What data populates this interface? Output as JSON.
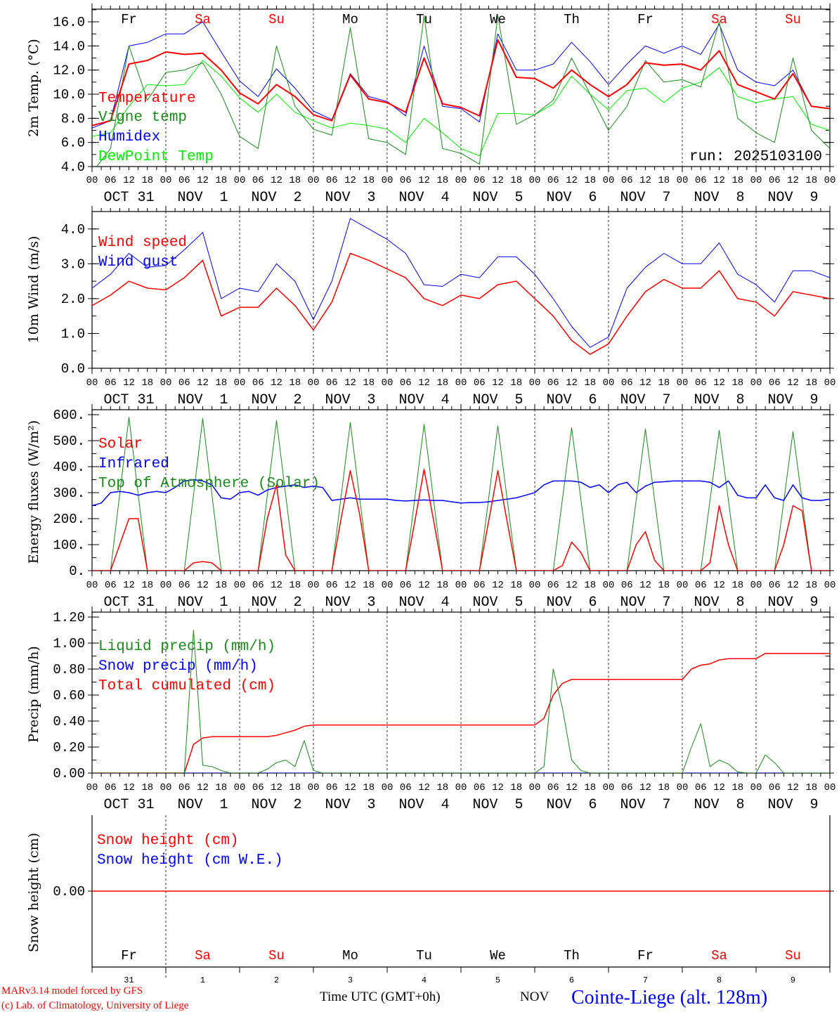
{
  "chart_data": [
    {
      "type": "line",
      "id": "temperature",
      "ylabel": "2m Temp. (°C)",
      "ylim": [
        4,
        17.05
      ],
      "yticks": [
        4,
        6,
        8,
        10,
        12,
        14,
        16
      ],
      "ytick_labels": [
        "4.0",
        "6.0",
        "8.0",
        "10.0",
        "12.0",
        "14.0",
        "16.0"
      ],
      "minor_step": 1,
      "weekday_labels": [
        "Fr",
        "Sa",
        "Su",
        "Mo",
        "Tu",
        "We",
        "Th",
        "Fr",
        "Sa",
        "Su"
      ],
      "annotation": "run: 2025103100",
      "series": [
        {
          "name": "Temperature",
          "color": "#ff0000",
          "width": 2,
          "step_hours": 6,
          "values": [
            7.4,
            7.8,
            12.5,
            12.8,
            13.5,
            13.3,
            13.4,
            12.0,
            10.1,
            9.2,
            10.8,
            9.8,
            8.3,
            7.8,
            11.6,
            9.6,
            9.3,
            8.5,
            13.0,
            9.2,
            8.9,
            8.2,
            14.5,
            11.4,
            11.3,
            10.5,
            12.0,
            10.8,
            9.8,
            10.8,
            12.6,
            12.4,
            12.5,
            12.0,
            13.6,
            10.8,
            10.2,
            9.6,
            11.7,
            9.0,
            8.8
          ]
        },
        {
          "name": "Vigne temp",
          "color": "#1a8a1a",
          "width": 1,
          "step_hours": 6,
          "values": [
            3.5,
            5.5,
            14.0,
            9.5,
            11.8,
            12.0,
            12.6,
            10.0,
            6.5,
            5.5,
            14.0,
            9.0,
            7.1,
            6.6,
            15.5,
            6.3,
            6.0,
            5.0,
            16.5,
            5.5,
            5.1,
            4.2,
            16.5,
            7.5,
            8.3,
            9.5,
            13.0,
            10.0,
            7.0,
            9.0,
            12.8,
            11.0,
            11.2,
            10.6,
            16.0,
            8.0,
            6.8,
            6.0,
            13.0,
            7.0,
            5.5
          ]
        },
        {
          "name": "Humidex",
          "color": "#0000ff",
          "width": 1,
          "step_hours": 6,
          "values": [
            7.2,
            7.8,
            14.0,
            14.3,
            15.0,
            15.0,
            16.0,
            13.5,
            11.1,
            9.8,
            12.1,
            10.5,
            8.6,
            7.9,
            11.7,
            9.8,
            9.4,
            8.2,
            14.0,
            9.0,
            8.8,
            7.7,
            15.0,
            12.0,
            12.0,
            12.5,
            14.3,
            12.7,
            10.8,
            12.5,
            14.0,
            13.4,
            14.0,
            13.3,
            15.8,
            12.0,
            11.0,
            10.7,
            12.0,
            9.0,
            8.8
          ]
        },
        {
          "name": "DewPoint Temp",
          "color": "#00ee00",
          "width": 1,
          "step_hours": 6,
          "values": [
            6.5,
            6.8,
            9.0,
            10.8,
            10.7,
            10.8,
            12.8,
            11.5,
            9.7,
            8.5,
            10.0,
            8.5,
            7.8,
            7.2,
            7.6,
            7.4,
            7.1,
            6.0,
            8.0,
            6.8,
            5.5,
            4.9,
            8.4,
            8.4,
            8.3,
            9.2,
            11.5,
            10.0,
            8.7,
            10.3,
            10.5,
            9.3,
            10.5,
            11.0,
            12.2,
            9.8,
            9.3,
            9.6,
            9.8,
            7.5,
            7.0
          ]
        }
      ]
    },
    {
      "type": "line",
      "id": "wind",
      "ylabel": "10m Wind (m/s)",
      "ylim": [
        0,
        4.5
      ],
      "yticks": [
        0,
        1,
        2,
        3,
        4
      ],
      "ytick_labels": [
        "0.0",
        "1.0",
        "2.0",
        "3.0",
        "4.0"
      ],
      "minor_step": 0.5,
      "series": [
        {
          "name": "Wind speed",
          "color": "#ff0000",
          "width": 1.5,
          "step_hours": 6,
          "values": [
            1.8,
            2.1,
            2.5,
            2.3,
            2.25,
            2.6,
            3.1,
            1.5,
            1.75,
            1.75,
            2.3,
            1.8,
            1.1,
            1.9,
            3.3,
            3.1,
            2.85,
            2.6,
            2.0,
            1.8,
            2.1,
            2.0,
            2.4,
            2.5,
            2.0,
            1.5,
            0.8,
            0.4,
            0.7,
            1.5,
            2.2,
            2.55,
            2.3,
            2.3,
            2.8,
            2.0,
            1.9,
            1.5,
            2.2,
            2.1,
            2.0
          ]
        },
        {
          "name": "Wind gust",
          "color": "#0000ff",
          "width": 1,
          "step_hours": 6,
          "values": [
            2.3,
            2.7,
            3.3,
            2.9,
            2.95,
            3.4,
            3.9,
            2.0,
            2.3,
            2.2,
            3.0,
            2.5,
            1.4,
            2.5,
            4.3,
            4.0,
            3.7,
            3.3,
            2.4,
            2.35,
            2.7,
            2.6,
            3.2,
            3.2,
            2.7,
            2.0,
            1.2,
            0.6,
            0.9,
            2.3,
            2.9,
            3.3,
            3.0,
            3.0,
            3.6,
            2.7,
            2.4,
            1.9,
            2.8,
            2.8,
            2.6
          ]
        }
      ]
    },
    {
      "type": "line",
      "id": "energy",
      "ylabel": "Energy fluxes (W/m²)",
      "ylim": [
        0,
        619
      ],
      "yticks": [
        0,
        100,
        200,
        300,
        400,
        500,
        600
      ],
      "ytick_labels": [
        "0.",
        "100.",
        "200.",
        "300.",
        "400.",
        "500.",
        "600."
      ],
      "minor_step": 50,
      "series": [
        {
          "name": "Solar",
          "color": "#ff0000",
          "width": 1.5,
          "step_hours": 3,
          "values": [
            0,
            0,
            0,
            100,
            200,
            200,
            0,
            0,
            0,
            0,
            0,
            30,
            35,
            30,
            0,
            0,
            0,
            0,
            0,
            200,
            330,
            60,
            0,
            0,
            0,
            0,
            0,
            200,
            385,
            220,
            0,
            0,
            0,
            0,
            0,
            190,
            390,
            200,
            0,
            0,
            0,
            0,
            0,
            190,
            385,
            190,
            0,
            0,
            0,
            0,
            0,
            20,
            110,
            70,
            0,
            0,
            0,
            0,
            0,
            100,
            150,
            40,
            0,
            0,
            0,
            0,
            0,
            30,
            250,
            100,
            0,
            0,
            0,
            0,
            0,
            100,
            250,
            230,
            0,
            0,
            0
          ]
        },
        {
          "name": "Infrared",
          "color": "#0000ff",
          "width": 1.5,
          "step_hours": 3,
          "values": [
            250,
            260,
            300,
            305,
            300,
            290,
            300,
            305,
            300,
            320,
            345,
            350,
            345,
            330,
            280,
            275,
            300,
            305,
            290,
            310,
            320,
            325,
            330,
            320,
            325,
            320,
            270,
            275,
            280,
            275,
            275,
            275,
            275,
            270,
            268,
            270,
            272,
            270,
            270,
            265,
            260,
            262,
            262,
            265,
            270,
            275,
            280,
            290,
            300,
            330,
            345,
            345,
            345,
            340,
            320,
            330,
            300,
            330,
            340,
            300,
            325,
            340,
            342,
            345,
            345,
            345,
            345,
            340,
            320,
            345,
            290,
            280,
            280,
            330,
            280,
            270,
            330,
            280,
            270,
            270,
            275
          ]
        },
        {
          "name": "Top of Atmosphere (Solar)",
          "color": "#1a8a1a",
          "width": 1,
          "step_hours": 3,
          "values": [
            0,
            0,
            0,
            295,
            590,
            295,
            0,
            0,
            0,
            0,
            0,
            292,
            585,
            292,
            0,
            0,
            0,
            0,
            0,
            289,
            578,
            289,
            0,
            0,
            0,
            0,
            0,
            285,
            570,
            285,
            0,
            0,
            0,
            0,
            0,
            281,
            563,
            281,
            0,
            0,
            0,
            0,
            0,
            278,
            557,
            278,
            0,
            0,
            0,
            0,
            0,
            275,
            550,
            275,
            0,
            0,
            0,
            0,
            0,
            272,
            545,
            272,
            0,
            0,
            0,
            0,
            0,
            270,
            540,
            270,
            0,
            0,
            0,
            0,
            0,
            267,
            535,
            267,
            0,
            0,
            0
          ]
        }
      ]
    },
    {
      "type": "line",
      "id": "precip",
      "ylabel": "Precip (mm/h)",
      "ylim": [
        0,
        1.238
      ],
      "yticks": [
        0,
        0.2,
        0.4,
        0.6,
        0.8,
        1.0,
        1.2
      ],
      "ytick_labels": [
        "0.00",
        "0.20",
        "0.40",
        "0.60",
        "0.80",
        "1.00",
        "1.20"
      ],
      "minor_step": 0.1,
      "series": [
        {
          "name": "Liquid precip (mm/h)",
          "color": "#1a8a1a",
          "width": 1,
          "step_hours": 3,
          "values": [
            0,
            0,
            0,
            0,
            0,
            0,
            0,
            0,
            0,
            0,
            0,
            1.1,
            0.06,
            0.05,
            0.02,
            0,
            0,
            0,
            0,
            0.03,
            0.08,
            0.1,
            0.05,
            0.25,
            0.02,
            0,
            0,
            0,
            0,
            0,
            0,
            0,
            0,
            0,
            0,
            0,
            0,
            0,
            0,
            0,
            0,
            0,
            0,
            0,
            0,
            0,
            0,
            0,
            0,
            0.05,
            0.8,
            0.5,
            0.1,
            0.02,
            0,
            0,
            0,
            0,
            0,
            0,
            0,
            0,
            0,
            0,
            0,
            0.2,
            0.38,
            0.05,
            0.1,
            0.07,
            0.01,
            0,
            0,
            0.14,
            0.08,
            0,
            0,
            0,
            0,
            0,
            0
          ]
        },
        {
          "name": "Snow precip (mm/h)",
          "color": "#0000ff",
          "width": 1,
          "step_hours": 24,
          "values": [
            0,
            0,
            0,
            0,
            0,
            0,
            0,
            0,
            0,
            0,
            0
          ]
        },
        {
          "name": "Total cumulated (cm)",
          "color": "#ff0000",
          "width": 1.5,
          "step_hours": 3,
          "values": [
            0,
            0,
            0,
            0,
            0,
            0,
            0,
            0,
            0,
            0,
            0,
            0.22,
            0.27,
            0.28,
            0.28,
            0.28,
            0.28,
            0.28,
            0.28,
            0.28,
            0.29,
            0.31,
            0.33,
            0.36,
            0.37,
            0.37,
            0.37,
            0.37,
            0.37,
            0.37,
            0.37,
            0.37,
            0.37,
            0.37,
            0.37,
            0.37,
            0.37,
            0.37,
            0.37,
            0.37,
            0.37,
            0.37,
            0.37,
            0.37,
            0.37,
            0.37,
            0.37,
            0.37,
            0.37,
            0.42,
            0.6,
            0.69,
            0.72,
            0.72,
            0.72,
            0.72,
            0.72,
            0.72,
            0.72,
            0.72,
            0.72,
            0.72,
            0.72,
            0.72,
            0.72,
            0.8,
            0.83,
            0.84,
            0.87,
            0.88,
            0.88,
            0.88,
            0.88,
            0.92,
            0.92,
            0.92,
            0.92,
            0.92,
            0.92,
            0.92,
            0.92
          ]
        }
      ]
    },
    {
      "type": "line",
      "id": "snow",
      "ylabel": "Snow height (cm)",
      "ylim": [
        -1,
        1
      ],
      "yticks": [
        0
      ],
      "ytick_labels": [
        "0.00"
      ],
      "minor_step": 0,
      "weekday_labels": [
        "Fr",
        "Sa",
        "Su",
        "Mo",
        "Tu",
        "We",
        "Th",
        "Fr",
        "Sa",
        "Su"
      ],
      "series": [
        {
          "name": "Snow height (cm)",
          "color": "#ff0000",
          "width": 1.5,
          "step_hours": 24,
          "values": [
            0,
            0,
            0,
            0,
            0,
            0,
            0,
            0,
            0,
            0,
            0
          ]
        },
        {
          "name": "Snow height (cm W.E.)",
          "color": "#0000ff",
          "width": 1,
          "step_hours": 24,
          "values": [
            0,
            0,
            0,
            0,
            0,
            0,
            0,
            0,
            0,
            0,
            0
          ]
        }
      ]
    }
  ],
  "xaxis": {
    "hours": 240,
    "hour_labels": [
      "00",
      "06",
      "12",
      "18"
    ],
    "end_label": "00",
    "date_labels": [
      "OCT 31",
      "NOV  1",
      "NOV  2",
      "NOV  3",
      "NOV  4",
      "NOV  5",
      "NOV  6",
      "NOV  7",
      "NOV  8",
      "NOV  9"
    ],
    "day_numbers": [
      "31",
      "1",
      "2",
      "3",
      "4",
      "5",
      "6",
      "7",
      "8",
      "9"
    ],
    "weekend_color": "#ff0000",
    "weekend_days": [
      "Sa",
      "Su"
    ]
  },
  "footer": {
    "model": "MARv3.14 model forced by GFS",
    "credit": "(c) Lab. of Climatology, University of Liege",
    "time_label": "Time UTC (GMT+0h)",
    "month": "NOV",
    "station": "Cointe-Liege (alt. 128m)"
  }
}
